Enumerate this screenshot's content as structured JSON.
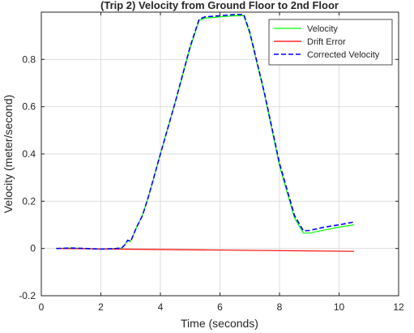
{
  "chart_data": {
    "type": "line",
    "title": "(Trip 2) Velocity from Ground Floor to 2nd Floor",
    "xlabel": "Time (seconds)",
    "ylabel": "Velocity (meter/second)",
    "xlim": [
      0,
      12
    ],
    "ylim": [
      -0.2,
      1.0
    ],
    "xticks": [
      0,
      2,
      4,
      6,
      8,
      10,
      12
    ],
    "yticks": [
      -0.2,
      0,
      0.2,
      0.4,
      0.6,
      0.8
    ],
    "ytick_labels": [
      "-0.2",
      "0",
      "0.2",
      "0.4",
      "0.6",
      "0.8"
    ],
    "grid": true,
    "legend_position": "top-right",
    "series": [
      {
        "name": "Velocity",
        "color": "#00ff00",
        "style": "solid",
        "points": [
          [
            0.5,
            0
          ],
          [
            1.0,
            0.002
          ],
          [
            1.5,
            0
          ],
          [
            2.0,
            -0.003
          ],
          [
            2.5,
            0
          ],
          [
            2.7,
            0.002
          ],
          [
            2.8,
            0.015
          ],
          [
            2.9,
            0.035
          ],
          [
            3.0,
            0.03
          ],
          [
            3.1,
            0.06
          ],
          [
            3.2,
            0.09
          ],
          [
            3.4,
            0.14
          ],
          [
            3.6,
            0.22
          ],
          [
            4.0,
            0.4
          ],
          [
            4.5,
            0.62
          ],
          [
            5.0,
            0.85
          ],
          [
            5.3,
            0.965
          ],
          [
            5.5,
            0.975
          ],
          [
            6.0,
            0.98
          ],
          [
            6.5,
            0.985
          ],
          [
            6.8,
            0.985
          ],
          [
            7.0,
            0.91
          ],
          [
            7.5,
            0.65
          ],
          [
            8.0,
            0.35
          ],
          [
            8.5,
            0.13
          ],
          [
            8.8,
            0.065
          ],
          [
            9.0,
            0.065
          ],
          [
            9.5,
            0.078
          ],
          [
            10.0,
            0.09
          ],
          [
            10.5,
            0.1
          ]
        ]
      },
      {
        "name": "Drift Error",
        "color": "#ff0000",
        "style": "solid",
        "points": [
          [
            0.5,
            0
          ],
          [
            10.5,
            -0.012
          ]
        ]
      },
      {
        "name": "Corrected Velocity",
        "color": "#0000ff",
        "style": "dashed",
        "points": [
          [
            0.5,
            0
          ],
          [
            1.0,
            0.002
          ],
          [
            1.5,
            0
          ],
          [
            2.0,
            -0.003
          ],
          [
            2.5,
            0
          ],
          [
            2.7,
            0.002
          ],
          [
            2.8,
            0.015
          ],
          [
            2.9,
            0.035
          ],
          [
            3.0,
            0.03
          ],
          [
            3.1,
            0.06
          ],
          [
            3.2,
            0.09
          ],
          [
            3.4,
            0.14
          ],
          [
            3.6,
            0.22
          ],
          [
            4.0,
            0.4
          ],
          [
            4.5,
            0.62
          ],
          [
            5.0,
            0.855
          ],
          [
            5.3,
            0.97
          ],
          [
            5.5,
            0.98
          ],
          [
            6.0,
            0.985
          ],
          [
            6.5,
            0.99
          ],
          [
            6.8,
            0.99
          ],
          [
            7.0,
            0.915
          ],
          [
            7.5,
            0.655
          ],
          [
            8.0,
            0.36
          ],
          [
            8.5,
            0.14
          ],
          [
            8.8,
            0.075
          ],
          [
            9.0,
            0.076
          ],
          [
            9.5,
            0.09
          ],
          [
            10.0,
            0.1
          ],
          [
            10.5,
            0.112
          ]
        ]
      }
    ]
  }
}
